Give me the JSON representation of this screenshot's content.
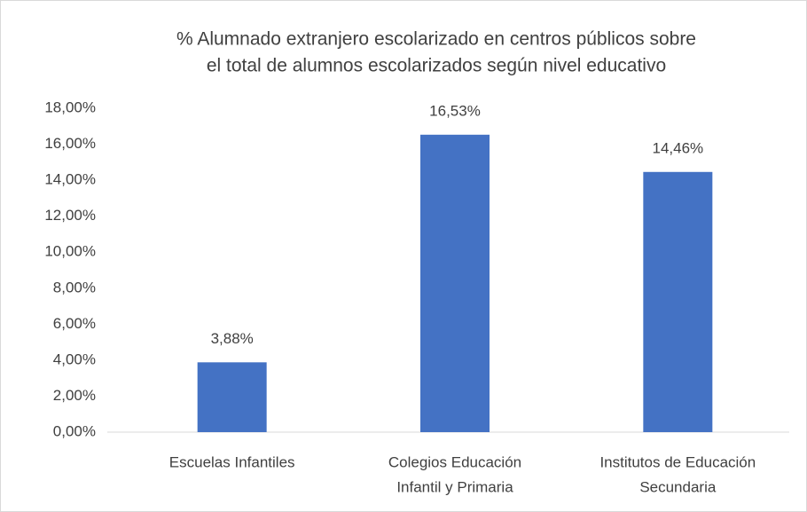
{
  "chart_data": {
    "type": "bar",
    "title": [
      "% Alumnado extranjero escolarizado en centros públicos sobre",
      "el total de alumnos escolarizados según nivel educativo"
    ],
    "categories": [
      [
        "Escuelas Infantiles"
      ],
      [
        "Colegios Educación",
        "Infantil y Primaria"
      ],
      [
        "Institutos de Educación",
        "Secundaria"
      ]
    ],
    "values": [
      3.88,
      16.53,
      14.46
    ],
    "value_labels": [
      "3,88%",
      "16,53%",
      "14,46%"
    ],
    "color": "#4472c4",
    "ylim": [
      0,
      18
    ],
    "yticks": [
      {
        "value": 0,
        "label": "0,00%"
      },
      {
        "value": 2,
        "label": "2,00%"
      },
      {
        "value": 4,
        "label": "4,00%"
      },
      {
        "value": 6,
        "label": "6,00%"
      },
      {
        "value": 8,
        "label": "8,00%"
      },
      {
        "value": 10,
        "label": "10,00%"
      },
      {
        "value": 12,
        "label": "12,00%"
      },
      {
        "value": 14,
        "label": "14,00%"
      },
      {
        "value": 16,
        "label": "16,00%"
      },
      {
        "value": 18,
        "label": "18,00%"
      }
    ],
    "grid": false
  }
}
